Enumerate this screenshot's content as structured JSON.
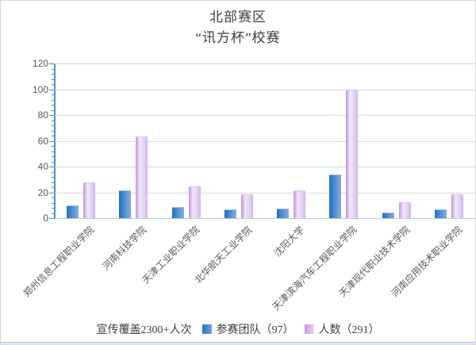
{
  "title": {
    "line1": "北部赛区",
    "line2": "“讯方杯”校赛"
  },
  "legend": {
    "note": "宣传覆盖2300+人次",
    "series1_label": "参赛团队（97）",
    "series2_label": "人数（291）"
  },
  "colors": {
    "series1_blue": "#2f77c5",
    "series2_purple": "#d4b4ec",
    "axis_blue": "#4d8fd1",
    "gridline": "#d9d9d9",
    "label_gray": "#595959"
  },
  "chart_data": {
    "type": "bar",
    "title": "北部赛区 “讯方杯”校赛",
    "categories": [
      "郑州信息工程职业学院",
      "河南科技学院",
      "天津工业职业学院",
      "北华航天工业学院",
      "沈阳大学",
      "天津滨海汽车工程职业学院",
      "天津现代职业技术学院",
      "河南应用技术职业学院"
    ],
    "series": [
      {
        "name": "参赛团队（97）",
        "values": [
          9,
          21,
          8,
          6,
          7,
          33,
          4,
          6
        ]
      },
      {
        "name": "人数（291）",
        "values": [
          27,
          63,
          24,
          18,
          21,
          99,
          12,
          18
        ]
      }
    ],
    "annotation": "宣传覆盖2300+人次",
    "xlabel": "",
    "ylabel": "",
    "ylim": [
      0,
      120
    ],
    "ytick_interval": 20,
    "ytick_minor_interval": 4,
    "grid": true,
    "legend_position": "bottom"
  }
}
